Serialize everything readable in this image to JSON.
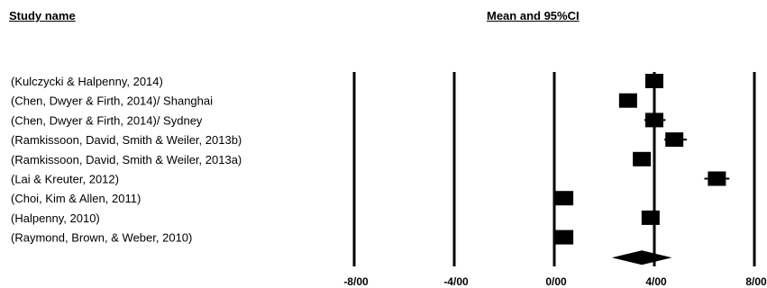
{
  "headers": {
    "study_name": "Study name",
    "mean_ci": "Mean and 95%CI"
  },
  "chart_data": {
    "type": "forest",
    "title": "",
    "xlabel": "",
    "ylabel": "",
    "xlim": [
      -10,
      8.3
    ],
    "tick_values": [
      -8,
      -4,
      0,
      4,
      8
    ],
    "tick_labels": [
      "-8/00",
      "-4/00",
      "0/00",
      "4/00",
      "8/00"
    ],
    "vertical_reference_lines": [
      -8,
      -4,
      0,
      4,
      8
    ],
    "studies": [
      {
        "name": "(Kulczycki &  Halpenny, 2014)",
        "mean": 4.0,
        "lower": 3.7,
        "upper": 4.3
      },
      {
        "name": "(Chen, Dwyer & Firth, 2014)/ Shanghai",
        "mean": 2.95,
        "lower": 2.6,
        "upper": 3.3
      },
      {
        "name": "(Chen, Dwyer & Firth, 2014)/ Sydney",
        "mean": 4.0,
        "lower": 3.6,
        "upper": 4.45
      },
      {
        "name": "(Ramkissoon, David, Smith & Weiler, 2013b)",
        "mean": 4.8,
        "lower": 4.4,
        "upper": 5.3
      },
      {
        "name": "(Ramkissoon, David, Smith & Weiler, 2013a)",
        "mean": 3.5,
        "lower": 3.2,
        "upper": 3.85
      },
      {
        "name": "(Lai & Kreuter, 2012)",
        "mean": 6.5,
        "lower": 6.0,
        "upper": 7.0
      },
      {
        "name": "(Choi, Kim & Allen, 2011)",
        "mean": 0.4,
        "lower": 0.15,
        "upper": 0.7
      },
      {
        "name": "(Halpenny, 2010)",
        "mean": 3.85,
        "lower": 3.55,
        "upper": 4.2
      },
      {
        "name": "(Raymond, Brown, & Weber, 2010)",
        "mean": 0.4,
        "lower": 0.15,
        "upper": 0.7
      }
    ],
    "summary": {
      "mean": 3.5,
      "lower": 2.3,
      "upper": 4.7
    }
  }
}
